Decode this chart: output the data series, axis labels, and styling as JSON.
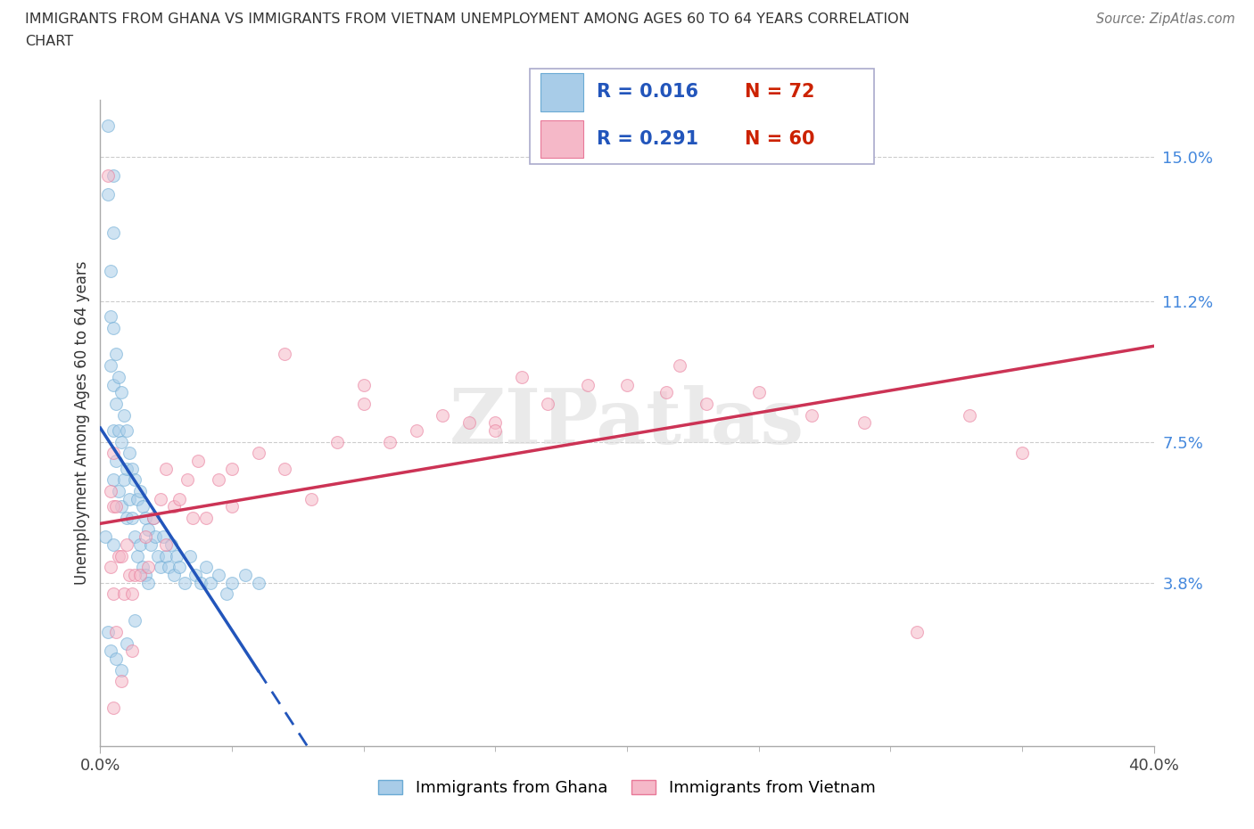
{
  "title_line1": "IMMIGRANTS FROM GHANA VS IMMIGRANTS FROM VIETNAM UNEMPLOYMENT AMONG AGES 60 TO 64 YEARS CORRELATION",
  "title_line2": "CHART",
  "source_text": "Source: ZipAtlas.com",
  "ylabel": "Unemployment Among Ages 60 to 64 years",
  "xlim": [
    0.0,
    0.4
  ],
  "ylim": [
    -0.005,
    0.165
  ],
  "ytick_positions": [
    0.038,
    0.075,
    0.112,
    0.15
  ],
  "ytick_labels": [
    "3.8%",
    "7.5%",
    "11.2%",
    "15.0%"
  ],
  "ghana_color": "#a8cce8",
  "vietnam_color": "#f5b8c8",
  "ghana_edge_color": "#6aaad4",
  "vietnam_edge_color": "#e87898",
  "trend_ghana_color": "#2255bb",
  "trend_vietnam_color": "#cc3355",
  "ghana_label": "Immigrants from Ghana",
  "vietnam_label": "Immigrants from Vietnam",
  "ghana_R": 0.016,
  "ghana_N": 72,
  "vietnam_R": 0.291,
  "vietnam_N": 60,
  "legend_R_color": "#2255bb",
  "legend_N_color": "#cc2200",
  "watermark": "ZIPatlas",
  "background_color": "#ffffff",
  "grid_color": "#cccccc",
  "marker_size": 100,
  "marker_alpha": 0.55,
  "ghana_x": [
    0.002,
    0.003,
    0.003,
    0.004,
    0.004,
    0.004,
    0.005,
    0.005,
    0.005,
    0.005,
    0.005,
    0.005,
    0.005,
    0.006,
    0.006,
    0.006,
    0.007,
    0.007,
    0.007,
    0.008,
    0.008,
    0.008,
    0.009,
    0.009,
    0.01,
    0.01,
    0.01,
    0.011,
    0.011,
    0.012,
    0.012,
    0.013,
    0.013,
    0.014,
    0.014,
    0.015,
    0.015,
    0.016,
    0.016,
    0.017,
    0.017,
    0.018,
    0.018,
    0.019,
    0.02,
    0.021,
    0.022,
    0.023,
    0.024,
    0.025,
    0.026,
    0.027,
    0.028,
    0.029,
    0.03,
    0.032,
    0.034,
    0.036,
    0.038,
    0.04,
    0.042,
    0.045,
    0.048,
    0.05,
    0.055,
    0.06,
    0.003,
    0.004,
    0.006,
    0.008,
    0.01,
    0.013
  ],
  "ghana_y": [
    0.05,
    0.14,
    0.158,
    0.12,
    0.108,
    0.095,
    0.145,
    0.13,
    0.105,
    0.09,
    0.078,
    0.065,
    0.048,
    0.098,
    0.085,
    0.07,
    0.092,
    0.078,
    0.062,
    0.088,
    0.075,
    0.058,
    0.082,
    0.065,
    0.078,
    0.068,
    0.055,
    0.072,
    0.06,
    0.068,
    0.055,
    0.065,
    0.05,
    0.06,
    0.045,
    0.062,
    0.048,
    0.058,
    0.042,
    0.055,
    0.04,
    0.052,
    0.038,
    0.048,
    0.055,
    0.05,
    0.045,
    0.042,
    0.05,
    0.045,
    0.042,
    0.048,
    0.04,
    0.045,
    0.042,
    0.038,
    0.045,
    0.04,
    0.038,
    0.042,
    0.038,
    0.04,
    0.035,
    0.038,
    0.04,
    0.038,
    0.025,
    0.02,
    0.018,
    0.015,
    0.022,
    0.028
  ],
  "vietnam_x": [
    0.003,
    0.004,
    0.004,
    0.005,
    0.005,
    0.005,
    0.006,
    0.006,
    0.007,
    0.008,
    0.009,
    0.01,
    0.011,
    0.012,
    0.013,
    0.015,
    0.017,
    0.02,
    0.023,
    0.025,
    0.028,
    0.03,
    0.033,
    0.037,
    0.04,
    0.045,
    0.05,
    0.06,
    0.07,
    0.08,
    0.09,
    0.1,
    0.11,
    0.12,
    0.13,
    0.14,
    0.15,
    0.16,
    0.17,
    0.185,
    0.2,
    0.215,
    0.23,
    0.25,
    0.27,
    0.29,
    0.31,
    0.33,
    0.35,
    0.005,
    0.008,
    0.012,
    0.018,
    0.025,
    0.035,
    0.05,
    0.07,
    0.1,
    0.15,
    0.22
  ],
  "vietnam_y": [
    0.145,
    0.062,
    0.042,
    0.072,
    0.058,
    0.035,
    0.058,
    0.025,
    0.045,
    0.045,
    0.035,
    0.048,
    0.04,
    0.035,
    0.04,
    0.04,
    0.05,
    0.055,
    0.06,
    0.068,
    0.058,
    0.06,
    0.065,
    0.07,
    0.055,
    0.065,
    0.068,
    0.072,
    0.068,
    0.06,
    0.075,
    0.085,
    0.075,
    0.078,
    0.082,
    0.08,
    0.08,
    0.092,
    0.085,
    0.09,
    0.09,
    0.088,
    0.085,
    0.088,
    0.082,
    0.08,
    0.025,
    0.082,
    0.072,
    0.005,
    0.012,
    0.02,
    0.042,
    0.048,
    0.055,
    0.058,
    0.098,
    0.09,
    0.078,
    0.095
  ]
}
